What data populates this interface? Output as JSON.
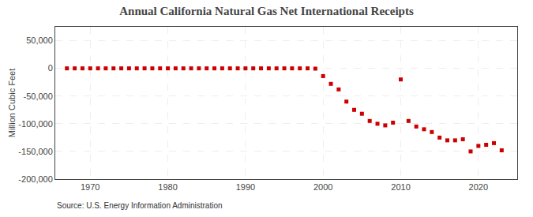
{
  "chart_data": {
    "type": "scatter",
    "title": "Annual California Natural Gas Net International Receipts",
    "y_label": "Million Cubic Feet",
    "annotations": [
      "Source: U.S. Energy Information Administration"
    ],
    "marker": "square",
    "color": "#cc0000",
    "grid": true,
    "xlim": [
      1965.5,
      2025
    ],
    "xticks": [
      1970,
      1980,
      1990,
      2000,
      2010,
      2020
    ],
    "ylim": [
      -200000,
      75000
    ],
    "yticks": [
      {
        "value": -200000,
        "label": "-200,000"
      },
      {
        "value": -150000,
        "label": "-150,000"
      },
      {
        "value": -100000,
        "label": "-100,000"
      },
      {
        "value": -50000,
        "label": "-50,000"
      },
      0,
      {
        "value": 50000,
        "label": "50,000"
      }
    ],
    "x": [
      1967,
      1968,
      1969,
      1970,
      1971,
      1972,
      1973,
      1974,
      1975,
      1976,
      1977,
      1978,
      1979,
      1980,
      1981,
      1982,
      1983,
      1984,
      1985,
      1986,
      1987,
      1988,
      1989,
      1990,
      1991,
      1992,
      1993,
      1994,
      1995,
      1996,
      1997,
      1998,
      1999,
      2000,
      2001,
      2002,
      2003,
      2004,
      2005,
      2006,
      2007,
      2008,
      2009,
      2010,
      2011,
      2012,
      2013,
      2014,
      2015,
      2016,
      2017,
      2018,
      2019,
      2020,
      2021,
      2022,
      2023
    ],
    "values": [
      0,
      0,
      0,
      0,
      0,
      0,
      0,
      0,
      0,
      0,
      0,
      0,
      0,
      0,
      0,
      0,
      0,
      0,
      0,
      0,
      0,
      0,
      0,
      0,
      0,
      0,
      0,
      0,
      0,
      0,
      0,
      0,
      -500,
      -14000,
      -28000,
      -38000,
      -60000,
      -75000,
      -82000,
      -95000,
      -100000,
      -103000,
      -98000,
      -20000,
      -95000,
      -105000,
      -110000,
      -115000,
      -125000,
      -130000,
      -130000,
      -128000,
      -150000,
      -140000,
      -138000,
      -135000,
      -148000
    ]
  }
}
